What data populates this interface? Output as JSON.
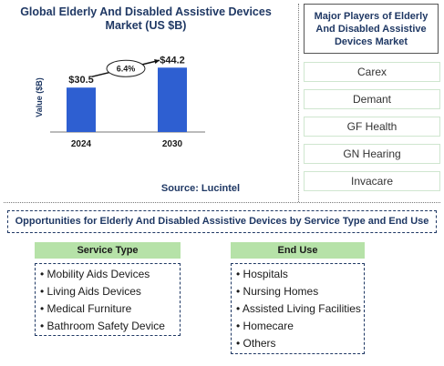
{
  "chart_data": {
    "type": "bar",
    "title": "Global Elderly And Disabled Assistive Devices Market (US $B)",
    "ylabel": "Value ($B)",
    "categories": [
      "2024",
      "2030"
    ],
    "values": [
      30.5,
      44.2
    ],
    "value_labels": [
      "$30.5",
      "$44.2"
    ],
    "ylim": [
      0,
      50
    ],
    "grid": false,
    "annotation": "6.4%",
    "bar_color": "#2e5fd1"
  },
  "source": "Source: Lucintel",
  "players": {
    "heading": "Major Players of Elderly And Disabled Assistive Devices Market",
    "items": [
      "Carex",
      "Demant",
      "GF Health",
      "GN Hearing",
      "Invacare"
    ]
  },
  "opportunities": {
    "title": "Opportunities for Elderly And Disabled Assistive Devices by Service Type and End Use",
    "service_type": {
      "heading": "Service Type",
      "items": [
        "• Mobility Aids Devices",
        "• Living Aids Devices",
        "• Medical Furniture",
        "• Bathroom Safety Device"
      ]
    },
    "end_use": {
      "heading": "End Use",
      "items": [
        "• Hospitals",
        "• Nursing Homes",
        "• Assisted Living Facilities",
        "• Homecare",
        "• Others"
      ]
    }
  },
  "colors": {
    "header_green": "#b6e2a8",
    "title_navy": "#1f3864"
  }
}
